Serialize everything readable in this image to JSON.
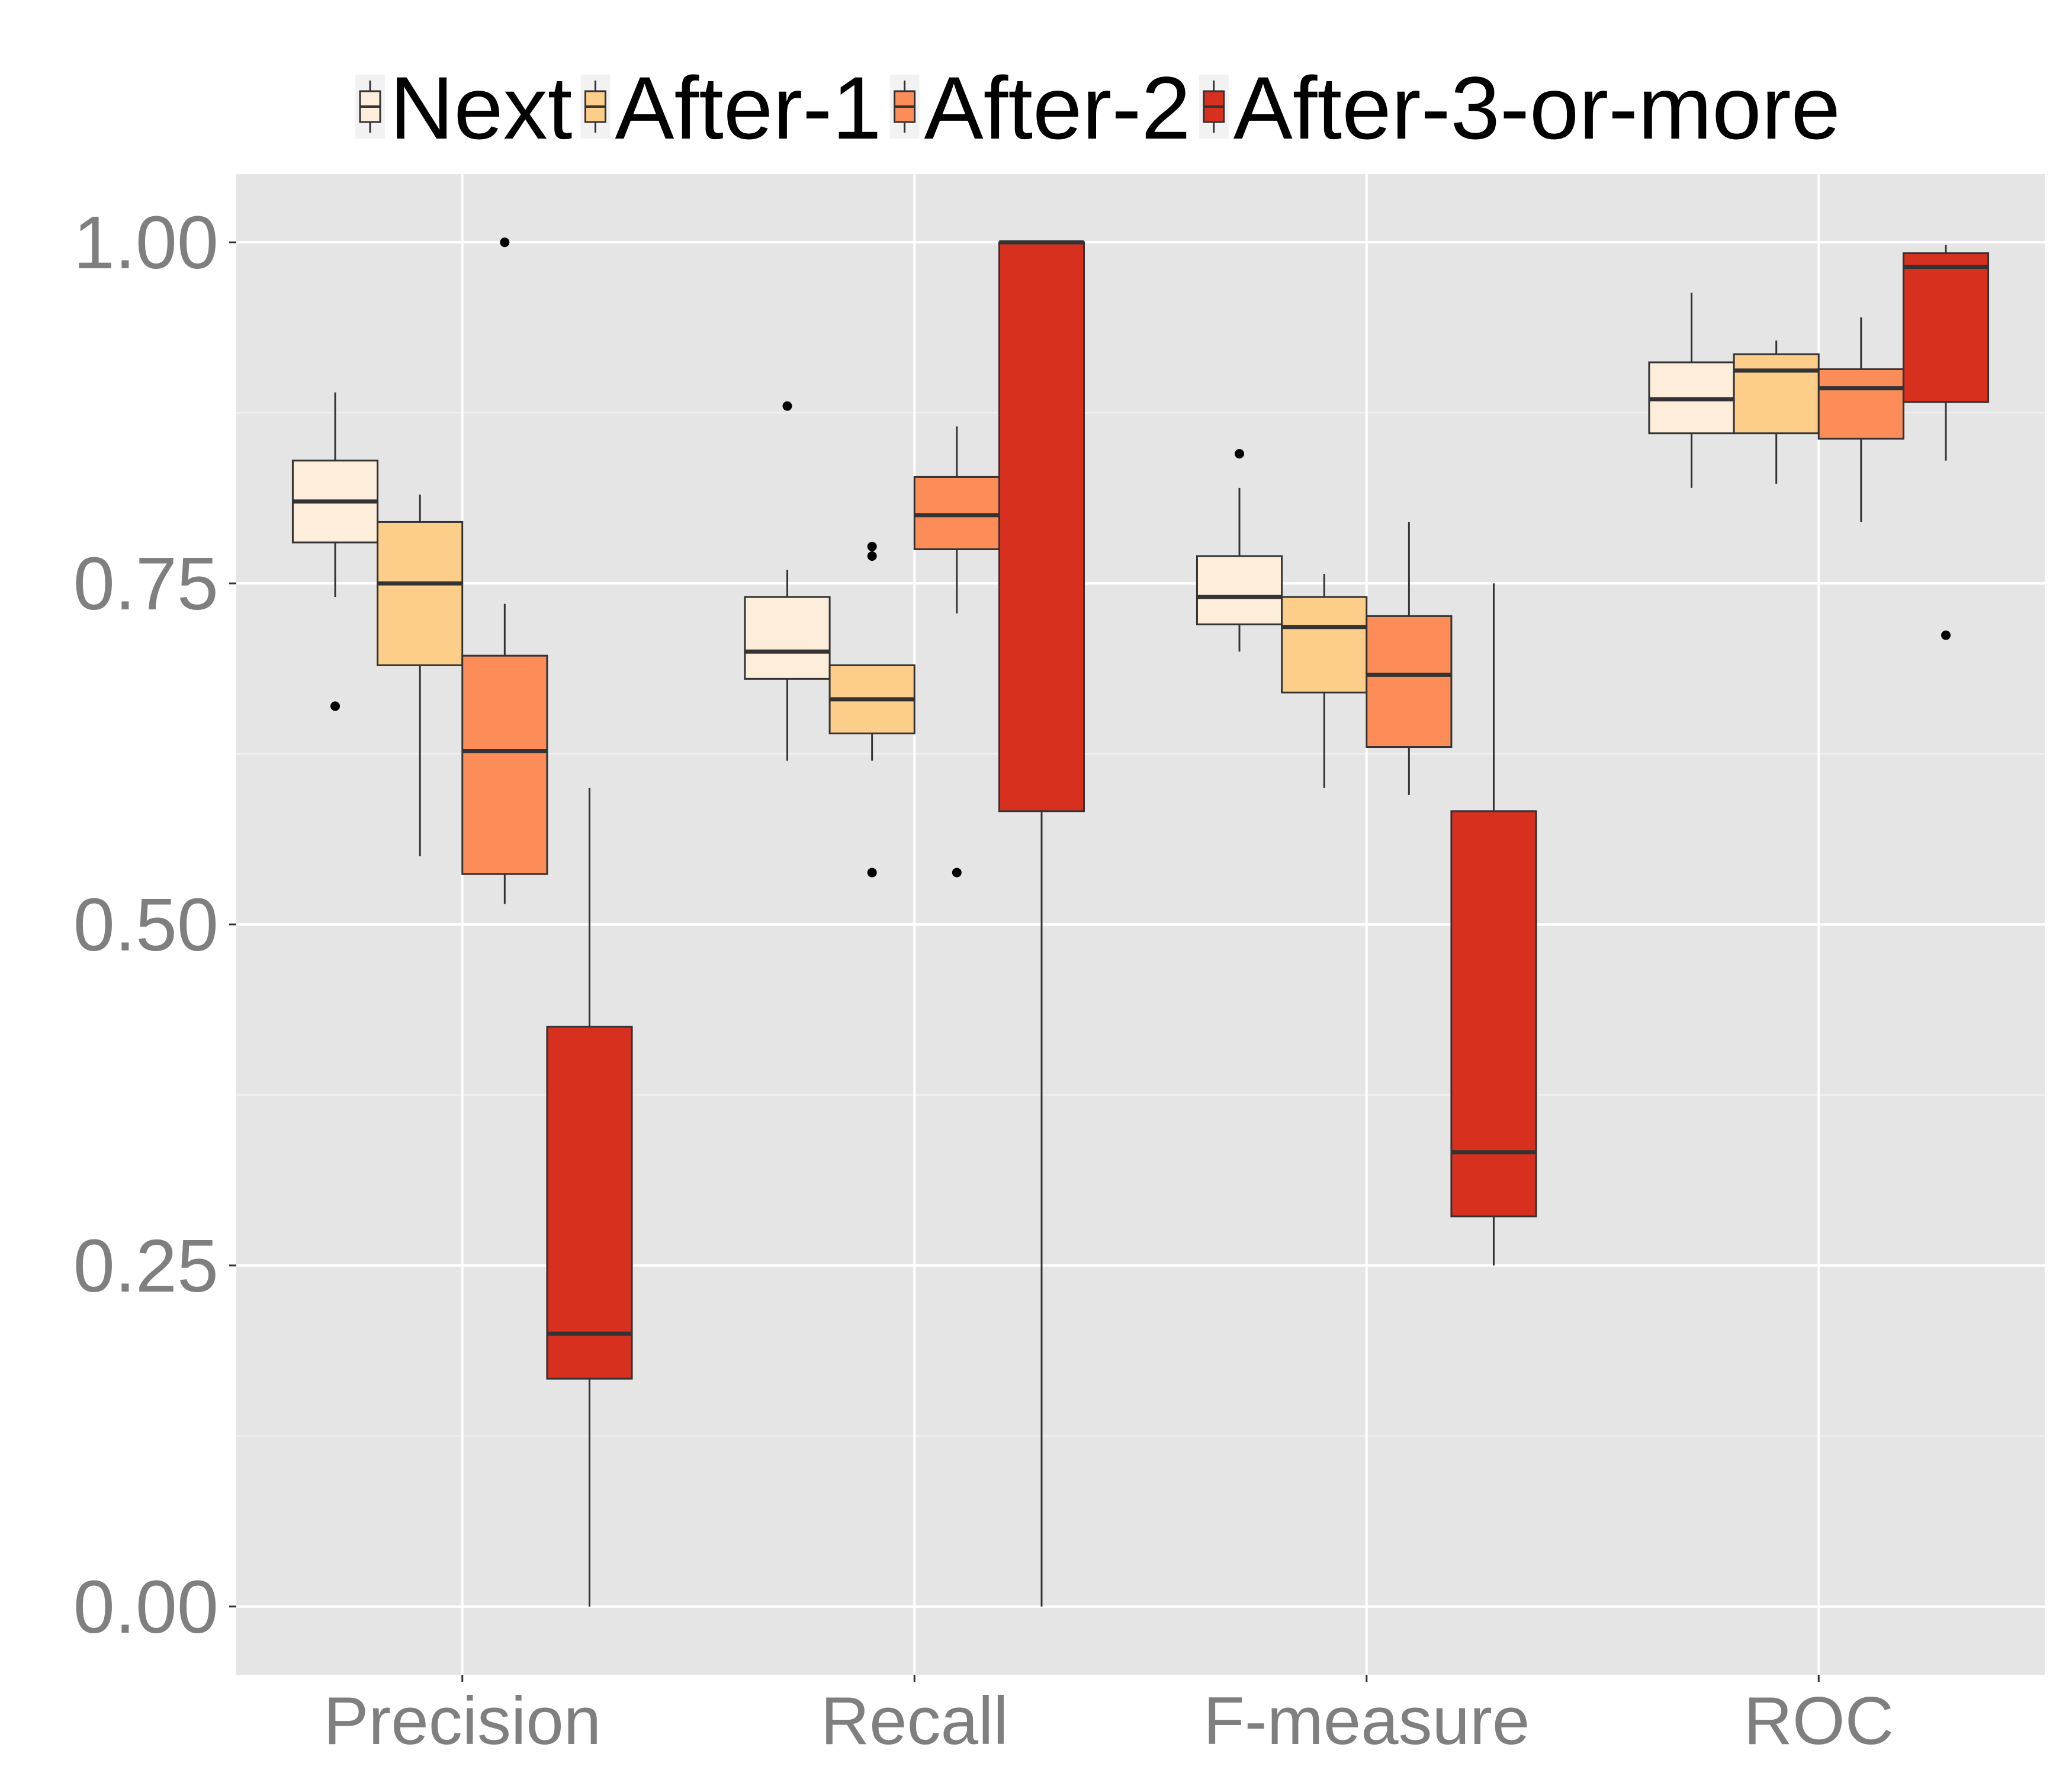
{
  "chart_data": {
    "type": "boxplot",
    "categories": [
      "Precision",
      "Recall",
      "F-measure",
      "ROC"
    ],
    "ylim": [
      -0.05,
      1.05
    ],
    "yticks": [
      0.0,
      0.25,
      0.5,
      0.75,
      1.0
    ],
    "ytick_labels": [
      "0.00",
      "0.25",
      "0.50",
      "0.75",
      "1.00"
    ],
    "minor_yticks": [
      0.125,
      0.375,
      0.625,
      0.875
    ],
    "grid": true,
    "legend_position": "top",
    "xlabel": "",
    "ylabel": "",
    "title": "",
    "series": [
      {
        "name": "Next",
        "color": "#fdeedb",
        "boxes": [
          {
            "category": "Precision",
            "whisker_low": 0.74,
            "q1": 0.78,
            "median": 0.81,
            "q3": 0.84,
            "whisker_high": 0.89,
            "outliers": [
              0.66
            ]
          },
          {
            "category": "Recall",
            "whisker_low": 0.62,
            "q1": 0.68,
            "median": 0.7,
            "q3": 0.74,
            "whisker_high": 0.76,
            "outliers": [
              0.88
            ]
          },
          {
            "category": "F-measure",
            "whisker_low": 0.7,
            "q1": 0.72,
            "median": 0.74,
            "q3": 0.77,
            "whisker_high": 0.82,
            "outliers": [
              0.845
            ]
          },
          {
            "category": "ROC",
            "whisker_low": 0.82,
            "q1": 0.86,
            "median": 0.885,
            "q3": 0.912,
            "whisker_high": 0.963,
            "outliers": []
          }
        ]
      },
      {
        "name": "After-1",
        "color": "#fdcd8a",
        "boxes": [
          {
            "category": "Precision",
            "whisker_low": 0.55,
            "q1": 0.69,
            "median": 0.75,
            "q3": 0.795,
            "whisker_high": 0.815,
            "outliers": []
          },
          {
            "category": "Recall",
            "whisker_low": 0.62,
            "q1": 0.64,
            "median": 0.665,
            "q3": 0.69,
            "whisker_high": 0.69,
            "outliers": [
              0.77,
              0.777,
              0.538
            ]
          },
          {
            "category": "F-measure",
            "whisker_low": 0.6,
            "q1": 0.67,
            "median": 0.718,
            "q3": 0.74,
            "whisker_high": 0.757,
            "outliers": []
          },
          {
            "category": "ROC",
            "whisker_low": 0.823,
            "q1": 0.86,
            "median": 0.906,
            "q3": 0.918,
            "whisker_high": 0.928,
            "outliers": []
          }
        ]
      },
      {
        "name": "After-2",
        "color": "#fc8d59",
        "boxes": [
          {
            "category": "Precision",
            "whisker_low": 0.515,
            "q1": 0.537,
            "median": 0.627,
            "q3": 0.697,
            "whisker_high": 0.735,
            "outliers": [
              1.0
            ]
          },
          {
            "category": "Recall",
            "whisker_low": 0.728,
            "q1": 0.775,
            "median": 0.8,
            "q3": 0.828,
            "whisker_high": 0.865,
            "outliers": [
              0.538
            ]
          },
          {
            "category": "F-measure",
            "whisker_low": 0.595,
            "q1": 0.63,
            "median": 0.683,
            "q3": 0.726,
            "whisker_high": 0.795,
            "outliers": []
          },
          {
            "category": "ROC",
            "whisker_low": 0.795,
            "q1": 0.856,
            "median": 0.893,
            "q3": 0.907,
            "whisker_high": 0.945,
            "outliers": []
          }
        ]
      },
      {
        "name": "After-3-or-more",
        "color": "#d7301f",
        "boxes": [
          {
            "category": "Precision",
            "whisker_low": 0.0,
            "q1": 0.167,
            "median": 0.2,
            "q3": 0.425,
            "whisker_high": 0.6,
            "outliers": []
          },
          {
            "category": "Recall",
            "whisker_low": 0.0,
            "q1": 0.583,
            "median": 1.0,
            "q3": 1.0,
            "whisker_high": 1.0,
            "outliers": []
          },
          {
            "category": "F-measure",
            "whisker_low": 0.25,
            "q1": 0.286,
            "median": 0.333,
            "q3": 0.583,
            "whisker_high": 0.75,
            "outliers": []
          },
          {
            "category": "ROC",
            "whisker_low": 0.84,
            "q1": 0.883,
            "median": 0.982,
            "q3": 0.992,
            "whisker_high": 0.998,
            "outliers": [
              0.712
            ]
          }
        ]
      }
    ]
  }
}
